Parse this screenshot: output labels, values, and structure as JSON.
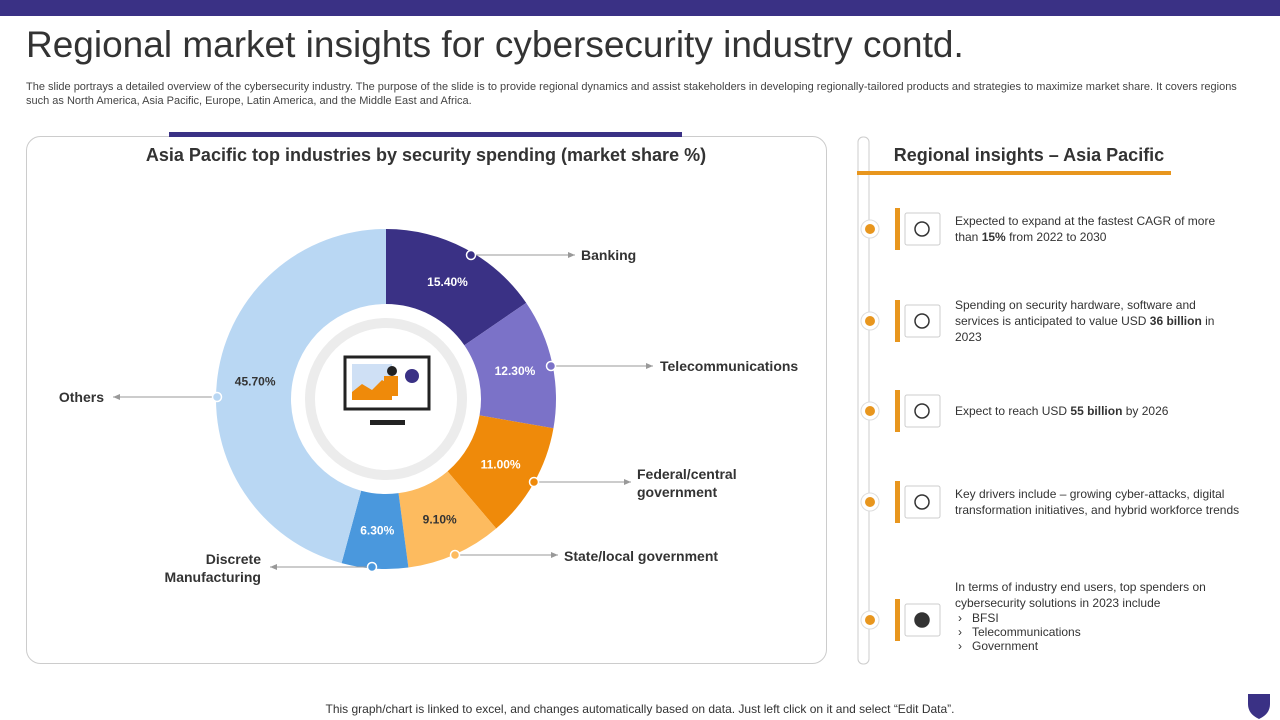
{
  "title": "Regional market insights for cybersecurity industry contd.",
  "description": "The slide portrays a detailed overview of the cybersecurity industry. The purpose of the slide is to provide regional dynamics and assist stakeholders in developing regionally-tailored products and strategies to maximize market share. It covers regions such as North America, Asia Pacific, Europe, Latin America, and the Middle East and Africa.",
  "chart_data": {
    "type": "pie",
    "title": "Asia Pacific top industries by security spending (market share %)",
    "categories": [
      "Banking",
      "Telecommunications",
      "Federal/central government",
      "State/local government",
      "Discrete Manufacturing",
      "Others"
    ],
    "values": [
      15.4,
      12.3,
      11.0,
      9.1,
      6.3,
      45.7
    ],
    "value_labels": [
      "15.40%",
      "12.30%",
      "11.00%",
      "9.10%",
      "6.30%",
      "45.70%"
    ],
    "colors": [
      "#3a3185",
      "#7b72c8",
      "#ef8a0a",
      "#fdbb5f",
      "#4a98dd",
      "#b9d7f3"
    ],
    "donut": true
  },
  "insights_title": "Regional insights – Asia Pacific",
  "insights": [
    {
      "parts": [
        "Expected to expand at the fastest CAGR  of more than ",
        "15%",
        " from  2022 to 2030"
      ]
    },
    {
      "parts": [
        "Spending on security hardware,  software and services is anticipated to value  USD ",
        "36 billion",
        " in 2023"
      ]
    },
    {
      "parts": [
        "Expect to reach  USD ",
        "55 billion",
        " by 2026"
      ]
    },
    {
      "parts": [
        "Key drivers  include – growing  cyber-attacks, digital transformation  initiatives, and hybrid workforce trends"
      ]
    },
    {
      "parts": [
        "In terms of industry end users, top spenders on cybersecurity solutions in 2023 include"
      ],
      "items": [
        "BFSI",
        "Telecommunications",
        "Government"
      ]
    }
  ],
  "footer": "This graph/chart is linked to excel,  and changes automatically based on data. Just left click on it and select “Edit Data”."
}
